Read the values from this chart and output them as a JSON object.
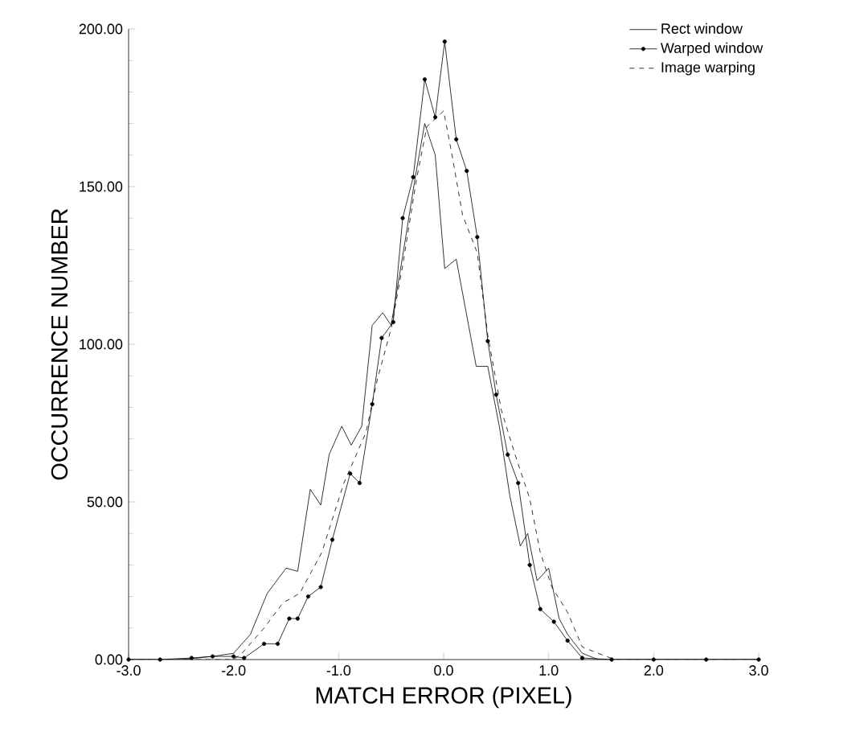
{
  "chart_data": {
    "type": "line",
    "xlabel": "MATCH ERROR (PIXEL)",
    "ylabel": "OCCURRENCE NUMBER",
    "xlim": [
      -3,
      3
    ],
    "ylim": [
      0,
      200
    ],
    "xticks": [
      {
        "value": -3,
        "label": "-3.0"
      },
      {
        "value": -2,
        "label": "-2.0"
      },
      {
        "value": -1,
        "label": "-1.0"
      },
      {
        "value": 0,
        "label": "0.0"
      },
      {
        "value": 1,
        "label": "1.0"
      },
      {
        "value": 2,
        "label": "2.0"
      },
      {
        "value": 3,
        "label": "3.0"
      }
    ],
    "yticks": [
      {
        "value": 0,
        "label": "0.00"
      },
      {
        "value": 50,
        "label": "50.00"
      },
      {
        "value": 100,
        "label": "100.00"
      },
      {
        "value": 150,
        "label": "150.00"
      },
      {
        "value": 200,
        "label": "200.00"
      }
    ],
    "legend": "top right",
    "grid": false,
    "series": [
      {
        "name": "Rect window",
        "color": "#000000",
        "line_style": "solid",
        "marker": "none",
        "x": [
          -3,
          -2.5,
          -2.2,
          -2.0,
          -1.84,
          -1.68,
          -1.5,
          -1.39,
          -1.27,
          -1.17,
          -1.09,
          -0.97,
          -0.88,
          -0.78,
          -0.68,
          -0.58,
          -0.5,
          -0.39,
          -0.27,
          -0.18,
          -0.08,
          0.01,
          0.12,
          0.31,
          0.42,
          0.53,
          0.63,
          0.73,
          0.8,
          0.89,
          1.0,
          1.1,
          1.18,
          1.32,
          1.47,
          2.0,
          3.0
        ],
        "values": [
          0,
          0,
          1,
          2,
          8,
          21,
          29,
          28,
          54,
          49,
          65,
          74,
          68,
          74,
          106,
          110,
          106,
          128,
          153,
          170,
          160,
          124,
          127,
          93,
          93,
          74,
          52,
          36,
          40,
          25,
          29,
          13,
          8,
          2,
          0,
          0,
          0
        ]
      },
      {
        "name": "Warped window",
        "color": "#000000",
        "line_style": "solid",
        "marker": "circle",
        "x": [
          -3,
          -2.7,
          -2.4,
          -2.2,
          -2.0,
          -1.9,
          -1.71,
          -1.58,
          -1.47,
          -1.39,
          -1.29,
          -1.17,
          -1.06,
          -0.89,
          -0.8,
          -0.68,
          -0.59,
          -0.48,
          -0.39,
          -0.29,
          -0.18,
          -0.08,
          0.01,
          0.12,
          0.22,
          0.32,
          0.42,
          0.5,
          0.61,
          0.71,
          0.82,
          0.92,
          1.05,
          1.18,
          1.32,
          1.6,
          2.0,
          2.5,
          3.0
        ],
        "values": [
          0,
          0,
          0.5,
          1,
          1,
          0.5,
          5,
          5,
          13,
          13,
          20,
          23,
          38,
          59,
          56,
          81,
          102,
          107,
          140,
          153,
          184,
          172,
          196,
          165,
          155,
          134,
          101,
          84,
          65,
          56,
          30,
          16,
          12,
          6,
          0.5,
          0,
          0,
          0,
          0
        ]
      },
      {
        "name": "Image warping",
        "color": "#000000",
        "line_style": "dashed",
        "marker": "none",
        "x": [
          -3,
          -2.0,
          -1.92,
          -1.71,
          -1.53,
          -1.37,
          -1.16,
          -0.95,
          -0.74,
          -0.63,
          -0.5,
          -0.39,
          -0.26,
          -0.16,
          0.0,
          0.08,
          0.18,
          0.32,
          0.42,
          0.55,
          0.68,
          0.82,
          0.92,
          1.03,
          1.18,
          1.32,
          1.47,
          1.63,
          3.0
        ],
        "values": [
          0,
          0,
          2,
          10,
          18,
          21,
          34,
          56,
          72,
          89,
          105,
          125,
          152,
          169,
          174,
          160,
          141,
          129,
          103,
          79,
          65,
          51,
          34,
          23,
          15,
          4,
          2,
          0,
          0
        ]
      }
    ]
  }
}
